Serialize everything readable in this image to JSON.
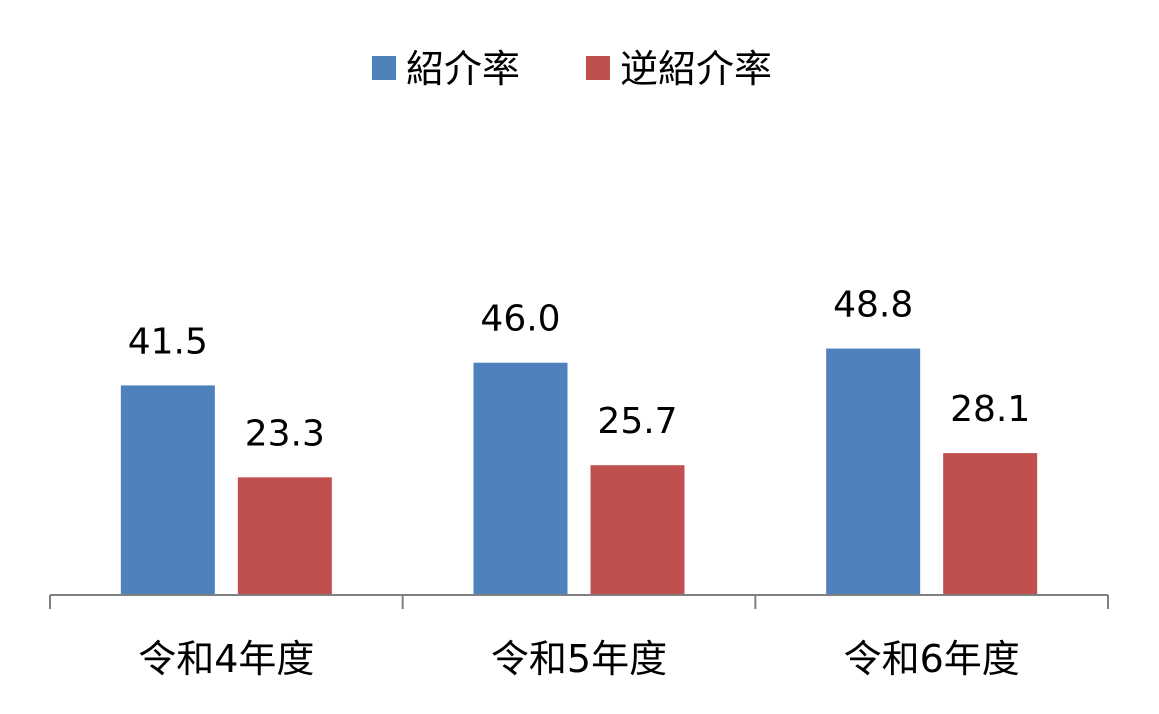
{
  "chart_data": {
    "type": "bar",
    "categories": [
      "令和4年度",
      "令和5年度",
      "令和6年度"
    ],
    "series": [
      {
        "name": "紹介率",
        "values": [
          41.5,
          46.0,
          48.8
        ],
        "color": "#4F81BD"
      },
      {
        "name": "逆紹介率",
        "values": [
          23.3,
          25.7,
          28.1
        ],
        "color": "#C0504D"
      }
    ],
    "data_labels": [
      [
        "41.5",
        "46.0",
        "48.8"
      ],
      [
        "23.3",
        "25.7",
        "28.1"
      ]
    ],
    "title": "",
    "xlabel": "",
    "ylabel": "",
    "ylim": [
      0,
      100
    ],
    "grid": false,
    "legend_position": "top-center",
    "axis_color": "#808080"
  }
}
